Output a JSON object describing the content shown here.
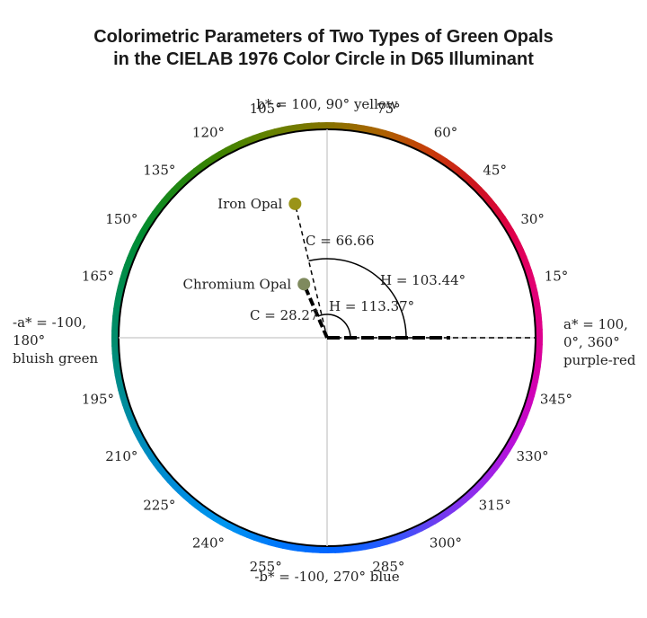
{
  "title": {
    "line1": "Colorimetric Parameters of Two Types of Green Opals",
    "line2": "in the CIELAB 1976 Color Circle in D65 Illuminant"
  },
  "axes": {
    "top": "b* = 100, 90° yellow",
    "bottom": "-b* = -100, 270° blue",
    "right": [
      "a* = 100,",
      "0°, 360°",
      "purple-red"
    ],
    "left": [
      "-a* = -100,",
      "180°",
      "bluish green"
    ]
  },
  "angle_labels": [
    {
      "deg": 15,
      "text": "15°"
    },
    {
      "deg": 30,
      "text": "30°"
    },
    {
      "deg": 45,
      "text": "45°"
    },
    {
      "deg": 60,
      "text": "60°"
    },
    {
      "deg": 75,
      "text": "75°"
    },
    {
      "deg": 105,
      "text": "105°"
    },
    {
      "deg": 120,
      "text": "120°"
    },
    {
      "deg": 135,
      "text": "135°"
    },
    {
      "deg": 150,
      "text": "150°"
    },
    {
      "deg": 165,
      "text": "165°"
    },
    {
      "deg": 195,
      "text": "195°"
    },
    {
      "deg": 210,
      "text": "210°"
    },
    {
      "deg": 225,
      "text": "225°"
    },
    {
      "deg": 240,
      "text": "240°"
    },
    {
      "deg": 255,
      "text": "255°"
    },
    {
      "deg": 285,
      "text": "285°"
    },
    {
      "deg": 300,
      "text": "300°"
    },
    {
      "deg": 315,
      "text": "315°"
    },
    {
      "deg": 330,
      "text": "330°"
    },
    {
      "deg": 345,
      "text": "345°"
    }
  ],
  "samples": [
    {
      "name": "Iron Opal",
      "chroma": 66.66,
      "hue": 103.44,
      "c_label": "C = 66.66",
      "h_label": "H = 103.44°",
      "color": "#9a9418"
    },
    {
      "name": "Chromium Opal",
      "chroma": 28.27,
      "hue": 113.37,
      "c_label": "C = 28.27",
      "h_label": "H = 113.37°",
      "color": "#7f8a5e"
    }
  ]
}
